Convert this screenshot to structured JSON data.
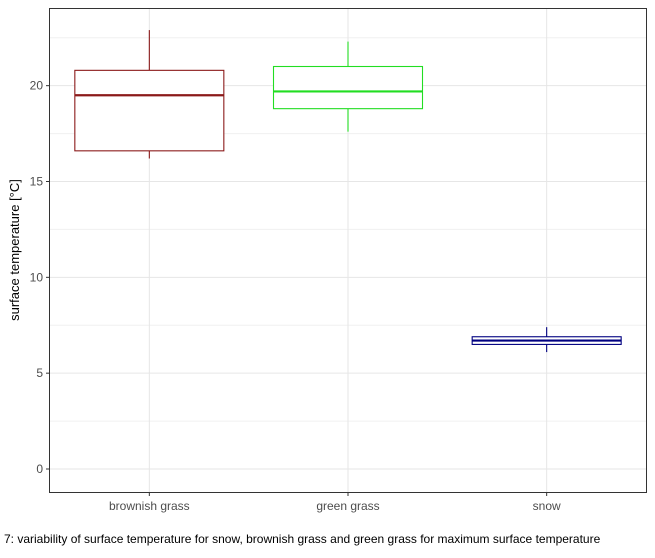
{
  "chart_data": {
    "type": "boxplot",
    "title": "",
    "xlabel": "",
    "ylabel": "surface temperature [°C]",
    "ylim": [
      -1.2,
      24.0
    ],
    "yticks": [
      0,
      5,
      10,
      15,
      20
    ],
    "grid": true,
    "legend": "none",
    "categories": [
      "brownish grass",
      "green grass",
      "snow"
    ],
    "boxes": [
      {
        "category": "brownish grass",
        "min": 16.2,
        "q1": 16.6,
        "median": 19.5,
        "q3": 20.8,
        "max": 22.9,
        "color": "#8B1A1A"
      },
      {
        "category": "green grass",
        "min": 17.6,
        "q1": 18.8,
        "median": 19.7,
        "q3": 21.0,
        "max": 22.3,
        "color": "#22DD22"
      },
      {
        "category": "snow",
        "min": 6.1,
        "q1": 6.5,
        "median": 6.7,
        "q3": 6.9,
        "max": 7.4,
        "color": "#000080"
      }
    ]
  },
  "caption": "7: variability of surface temperature for snow, brownish grass and green grass for maximum surface temperature"
}
